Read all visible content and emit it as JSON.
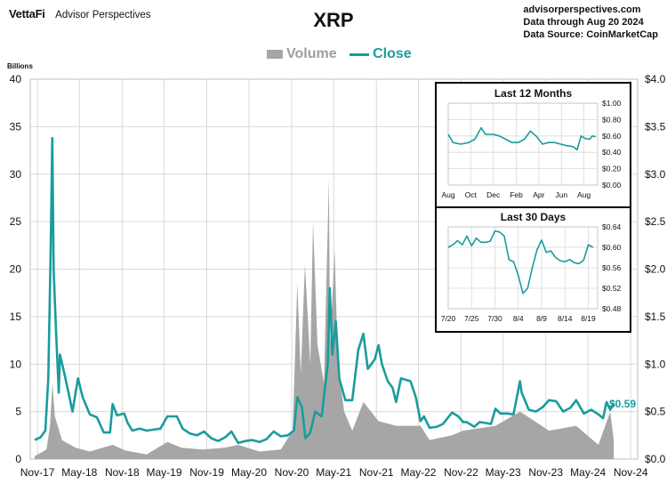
{
  "header": {
    "brand": "VettaFi",
    "brand_sub": "Advisor Perspectives",
    "title": "XRP",
    "source_lines": [
      "advisorperspectives.com",
      "Data through Aug 20 2024",
      "Data Source: CoinMarketCap"
    ]
  },
  "legend": {
    "volume_label": "Volume",
    "close_label": "Close"
  },
  "colors": {
    "close": "#1a9c9c",
    "volume": "#a6a6a6",
    "grid": "#d9d9d9"
  },
  "chart_data": [
    {
      "type": "line",
      "name": "main",
      "units_label": "Billions",
      "x_tick_labels": [
        "Nov-17",
        "May-18",
        "Nov-18",
        "May-19",
        "Nov-19",
        "May-20",
        "Nov-20",
        "May-21",
        "Nov-21",
        "May-22",
        "Nov-22",
        "May-23",
        "Nov-23",
        "May-24",
        "Nov-24"
      ],
      "y_left_ticks": [
        0,
        5,
        10,
        15,
        20,
        25,
        30,
        35,
        40
      ],
      "y_left_lim": [
        0,
        40
      ],
      "y_right_tick_labels": [
        "$0.0",
        "$0.5",
        "$1.0",
        "$1.5",
        "$2.0",
        "$2.5",
        "$3.0",
        "$3.5",
        "$4.0"
      ],
      "y_right_lim": [
        0,
        4
      ],
      "grid": true,
      "last_value_label": "$0.59",
      "series": [
        {
          "name": "Close",
          "axis": "right",
          "x": [
            "2017-10-20",
            "2017-11-15",
            "2017-12-05",
            "2017-12-18",
            "2017-12-28",
            "2018-01-04",
            "2018-01-10",
            "2018-01-20",
            "2018-02-01",
            "2018-02-06",
            "2018-02-25",
            "2018-03-15",
            "2018-04-01",
            "2018-04-25",
            "2018-05-15",
            "2018-06-15",
            "2018-07-15",
            "2018-08-14",
            "2018-09-10",
            "2018-09-21",
            "2018-10-10",
            "2018-11-10",
            "2018-11-25",
            "2018-12-15",
            "2019-01-15",
            "2019-02-15",
            "2019-03-15",
            "2019-04-15",
            "2019-05-15",
            "2019-06-25",
            "2019-07-20",
            "2019-08-20",
            "2019-09-20",
            "2019-10-20",
            "2019-11-20",
            "2019-12-20",
            "2020-01-20",
            "2020-02-15",
            "2020-03-15",
            "2020-04-15",
            "2020-05-15",
            "2020-06-15",
            "2020-07-15",
            "2020-08-15",
            "2020-09-15",
            "2020-10-15",
            "2020-11-10",
            "2020-11-25",
            "2020-12-15",
            "2020-12-30",
            "2021-01-20",
            "2021-02-10",
            "2021-03-10",
            "2021-04-05",
            "2021-04-14",
            "2021-04-25",
            "2021-05-10",
            "2021-05-25",
            "2021-06-20",
            "2021-07-20",
            "2021-08-15",
            "2021-09-06",
            "2021-09-25",
            "2021-10-25",
            "2021-11-10",
            "2021-11-25",
            "2021-12-20",
            "2022-01-10",
            "2022-01-25",
            "2022-02-15",
            "2022-03-28",
            "2022-04-20",
            "2022-05-10",
            "2022-05-25",
            "2022-06-18",
            "2022-07-20",
            "2022-08-15",
            "2022-09-23",
            "2022-10-20",
            "2022-11-10",
            "2022-11-25",
            "2022-12-28",
            "2023-01-20",
            "2023-02-15",
            "2023-03-10",
            "2023-03-29",
            "2023-04-20",
            "2023-05-20",
            "2023-06-15",
            "2023-07-13",
            "2023-07-20",
            "2023-08-20",
            "2023-09-20",
            "2023-10-20",
            "2023-11-15",
            "2023-12-15",
            "2024-01-15",
            "2024-02-15",
            "2024-03-11",
            "2024-04-13",
            "2024-05-15",
            "2024-06-15",
            "2024-07-05",
            "2024-07-20",
            "2024-08-05",
            "2024-08-20"
          ],
          "y": [
            0.2,
            0.23,
            0.3,
            0.85,
            2.2,
            3.38,
            2.0,
            1.35,
            0.7,
            1.1,
            0.9,
            0.7,
            0.5,
            0.85,
            0.65,
            0.47,
            0.44,
            0.28,
            0.28,
            0.58,
            0.46,
            0.48,
            0.38,
            0.3,
            0.32,
            0.3,
            0.31,
            0.32,
            0.45,
            0.45,
            0.32,
            0.27,
            0.25,
            0.29,
            0.22,
            0.19,
            0.23,
            0.29,
            0.17,
            0.19,
            0.2,
            0.18,
            0.21,
            0.29,
            0.24,
            0.25,
            0.3,
            0.65,
            0.55,
            0.22,
            0.28,
            0.5,
            0.45,
            1.0,
            1.8,
            1.1,
            1.45,
            0.85,
            0.62,
            0.62,
            1.15,
            1.32,
            0.95,
            1.05,
            1.2,
            1.0,
            0.82,
            0.75,
            0.6,
            0.85,
            0.82,
            0.65,
            0.4,
            0.45,
            0.33,
            0.34,
            0.37,
            0.49,
            0.45,
            0.39,
            0.39,
            0.34,
            0.39,
            0.38,
            0.37,
            0.53,
            0.48,
            0.48,
            0.47,
            0.82,
            0.7,
            0.52,
            0.5,
            0.55,
            0.62,
            0.61,
            0.5,
            0.54,
            0.62,
            0.48,
            0.52,
            0.47,
            0.43,
            0.6,
            0.52,
            0.59
          ]
        },
        {
          "name": "Volume",
          "axis": "left",
          "x": [
            "2017-10-20",
            "2017-12-10",
            "2017-12-25",
            "2018-01-05",
            "2018-01-15",
            "2018-02-15",
            "2018-04-15",
            "2018-06-15",
            "2018-09-21",
            "2018-11-15",
            "2019-02-15",
            "2019-05-15",
            "2019-07-15",
            "2019-10-15",
            "2020-01-15",
            "2020-03-15",
            "2020-06-15",
            "2020-09-15",
            "2020-11-05",
            "2020-11-25",
            "2020-12-10",
            "2020-12-28",
            "2021-01-20",
            "2021-02-01",
            "2021-02-20",
            "2021-03-20",
            "2021-04-10",
            "2021-04-15",
            "2021-05-05",
            "2021-05-19",
            "2021-06-15",
            "2021-07-20",
            "2021-09-06",
            "2021-11-10",
            "2022-01-25",
            "2022-05-10",
            "2022-06-18",
            "2022-09-23",
            "2022-11-10",
            "2023-03-29",
            "2023-07-13",
            "2023-11-15",
            "2024-03-11",
            "2024-06-15",
            "2024-08-05",
            "2024-08-20"
          ],
          "y": [
            0.3,
            1.0,
            3.5,
            8.0,
            4.5,
            2.0,
            1.2,
            0.8,
            1.5,
            0.9,
            0.5,
            1.8,
            1.2,
            1.0,
            1.2,
            1.5,
            0.8,
            1.0,
            3.0,
            18.5,
            9.0,
            20.5,
            10.0,
            25.0,
            12.0,
            8.0,
            29.5,
            12.0,
            22.0,
            10.0,
            5.0,
            3.0,
            6.0,
            4.0,
            3.5,
            3.5,
            2.0,
            2.5,
            3.0,
            3.5,
            5.0,
            3.0,
            3.5,
            1.5,
            5.0,
            2.0
          ]
        }
      ]
    },
    {
      "type": "line",
      "name": "inset_12m",
      "title": "Last 12 Months",
      "x_tick_labels": [
        "Aug",
        "Oct",
        "Dec",
        "Feb",
        "Apr",
        "Jun",
        "Aug"
      ],
      "y_tick_labels": [
        "$1.00",
        "$0.80",
        "$0.60",
        "$0.40",
        "$0.20",
        "$0.00"
      ],
      "ylim": [
        0,
        1
      ],
      "grid": true,
      "x": [
        "2023-08-20",
        "2023-09-01",
        "2023-09-20",
        "2023-10-10",
        "2023-10-25",
        "2023-11-10",
        "2023-11-20",
        "2023-12-10",
        "2023-12-25",
        "2024-01-10",
        "2024-01-25",
        "2024-02-10",
        "2024-02-25",
        "2024-03-11",
        "2024-03-25",
        "2024-04-10",
        "2024-04-25",
        "2024-05-10",
        "2024-05-25",
        "2024-06-10",
        "2024-06-25",
        "2024-07-05",
        "2024-07-15",
        "2024-07-25",
        "2024-08-05",
        "2024-08-12",
        "2024-08-20"
      ],
      "y": [
        0.62,
        0.52,
        0.5,
        0.52,
        0.56,
        0.7,
        0.62,
        0.62,
        0.6,
        0.56,
        0.52,
        0.52,
        0.56,
        0.66,
        0.6,
        0.5,
        0.52,
        0.52,
        0.5,
        0.48,
        0.47,
        0.43,
        0.6,
        0.57,
        0.56,
        0.6,
        0.59
      ]
    },
    {
      "type": "line",
      "name": "inset_30d",
      "title": "Last 30 Days",
      "x_tick_labels": [
        "7/20",
        "7/25",
        "7/30",
        "8/4",
        "8/9",
        "8/14",
        "8/19"
      ],
      "y_tick_labels": [
        "$0.64",
        "$0.60",
        "$0.56",
        "$0.52",
        "$0.48"
      ],
      "ylim": [
        0.48,
        0.64
      ],
      "grid": true,
      "x": [
        "2024-07-20",
        "2024-07-21",
        "2024-07-22",
        "2024-07-23",
        "2024-07-24",
        "2024-07-25",
        "2024-07-26",
        "2024-07-27",
        "2024-07-28",
        "2024-07-29",
        "2024-07-30",
        "2024-07-31",
        "2024-08-01",
        "2024-08-02",
        "2024-08-03",
        "2024-08-04",
        "2024-08-05",
        "2024-08-06",
        "2024-08-07",
        "2024-08-08",
        "2024-08-09",
        "2024-08-10",
        "2024-08-11",
        "2024-08-12",
        "2024-08-13",
        "2024-08-14",
        "2024-08-15",
        "2024-08-16",
        "2024-08-17",
        "2024-08-18",
        "2024-08-19",
        "2024-08-20"
      ],
      "y": [
        0.6,
        0.605,
        0.613,
        0.605,
        0.622,
        0.603,
        0.618,
        0.61,
        0.61,
        0.612,
        0.632,
        0.63,
        0.622,
        0.576,
        0.572,
        0.545,
        0.51,
        0.52,
        0.56,
        0.595,
        0.614,
        0.59,
        0.593,
        0.58,
        0.574,
        0.572,
        0.576,
        0.57,
        0.568,
        0.575,
        0.605,
        0.6
      ]
    }
  ]
}
